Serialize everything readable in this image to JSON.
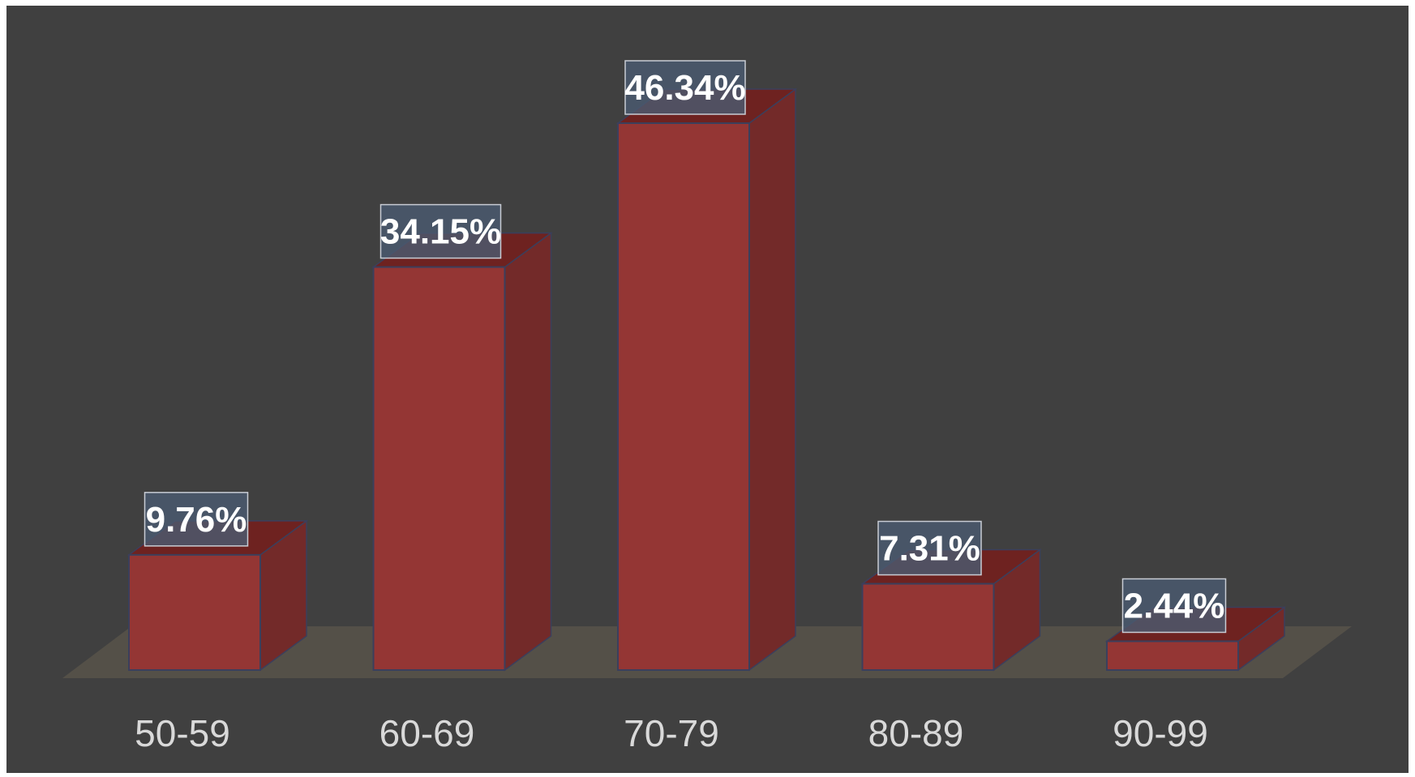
{
  "chart_data": {
    "type": "bar",
    "style": "3d-column",
    "title": "",
    "xlabel": "",
    "ylabel": "",
    "categories": [
      "50-59",
      "60-69",
      "70-79",
      "80-89",
      "90-99"
    ],
    "values": [
      9.76,
      34.15,
      46.34,
      7.31,
      2.44
    ],
    "data_labels": [
      "9.76%",
      "34.15%",
      "46.34%",
      "7.31%",
      "2.44%"
    ],
    "value_unit": "%",
    "ylim": [
      0,
      46.34
    ],
    "grid": false,
    "legend": "none",
    "colors": {
      "background": "#404040",
      "bar_front": "#943634",
      "bar_side": "#732a29",
      "bar_top": "#6e2220",
      "bar_edge": "#3b3f5c",
      "floor": "#545048",
      "label_box": "#4a5a70",
      "label_border": "#c8ccd4",
      "label_text": "#ffffff",
      "tick_text": "#d9d9d9"
    }
  }
}
